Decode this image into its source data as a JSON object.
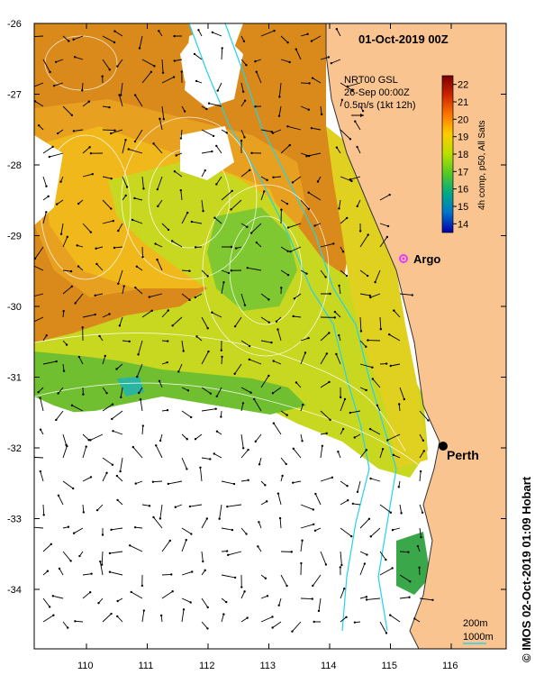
{
  "title": "01-Oct-2019 00Z",
  "legend_block": {
    "line1": "NRT00 GSL",
    "line2": "26-Sep 00:00Z",
    "line3": "0.5m/s (1kt 12h)"
  },
  "colorbar": {
    "label": "4h comp, p50, All Sats",
    "ticks": [
      "22",
      "21",
      "20",
      "19",
      "18",
      "17",
      "16",
      "15",
      "14"
    ],
    "colors": [
      "#7a0000",
      "#cc2200",
      "#ff7700",
      "#ffcc00",
      "#b8e000",
      "#55cc22",
      "#00aa88",
      "#0077cc",
      "#0000aa"
    ]
  },
  "lat_ticks": [
    "-26",
    "-27",
    "-28",
    "-29",
    "-30",
    "-31",
    "-32",
    "-33",
    "-34"
  ],
  "lon_ticks": [
    "110",
    "111",
    "112",
    "113",
    "114",
    "115",
    "116"
  ],
  "markers": {
    "argo": "Argo",
    "city": "Perth"
  },
  "depth_legend": {
    "shallow": "200m",
    "deep": "1000m"
  },
  "credit": "© IMOS 02-Oct-2019 01:09 Hobart",
  "colors": {
    "land": "#f9c48f",
    "isobath": "#22d3ee",
    "contours": "#ffffff",
    "argo": "#e040fb"
  }
}
